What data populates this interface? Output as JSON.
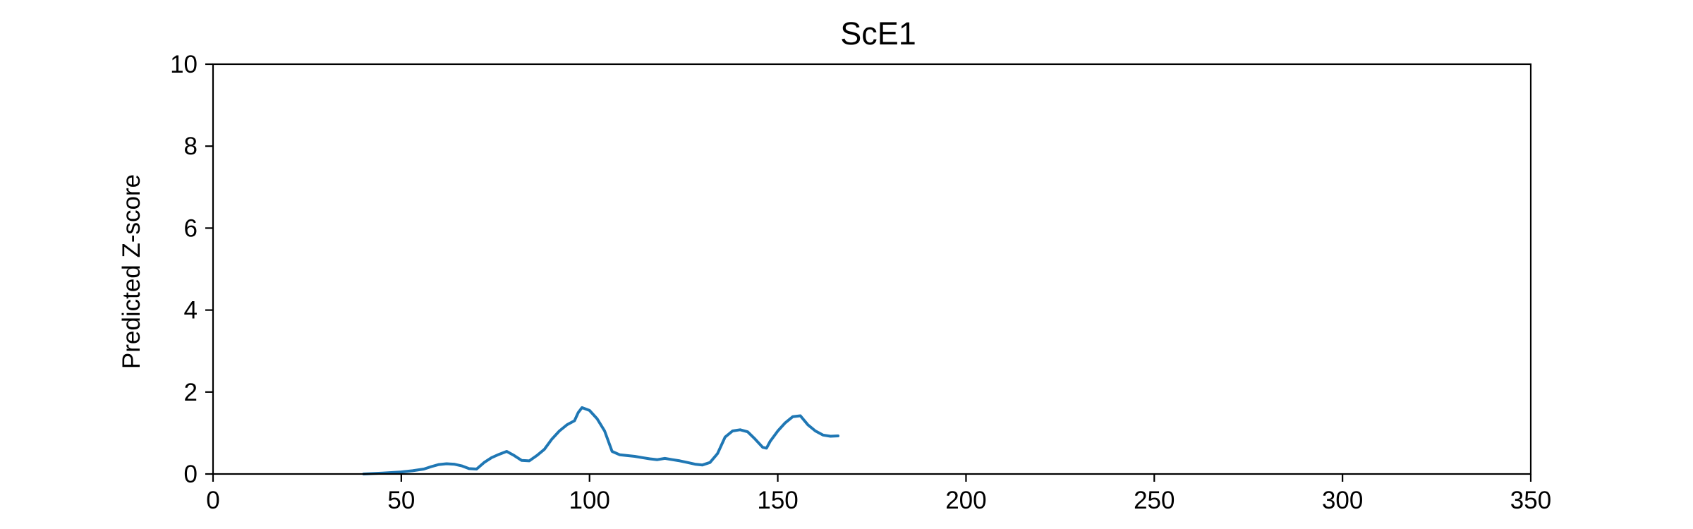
{
  "chart_data": {
    "type": "line",
    "title": "ScE1",
    "xlabel": "",
    "ylabel": "Predicted Z-score",
    "xlim": [
      0,
      350
    ],
    "ylim": [
      0,
      10
    ],
    "xticks": [
      0,
      50,
      100,
      150,
      200,
      250,
      300,
      350
    ],
    "yticks": [
      0,
      2,
      4,
      6,
      8,
      10
    ],
    "grid": false,
    "series": [
      {
        "color": "#1f77b4",
        "x": [
          40,
          45,
          50,
          53,
          56,
          58,
          60,
          62,
          64,
          66,
          68,
          70,
          72,
          74,
          76,
          78,
          80,
          82,
          84,
          86,
          88,
          90,
          92,
          94,
          96,
          97,
          98,
          100,
          102,
          104,
          106,
          108,
          110,
          112,
          114,
          116,
          118,
          120,
          122,
          124,
          126,
          128,
          130,
          132,
          134,
          136,
          138,
          140,
          142,
          144,
          146,
          147,
          148,
          150,
          152,
          154,
          156,
          158,
          160,
          162,
          164,
          166
        ],
        "y": [
          0.0,
          0.02,
          0.05,
          0.08,
          0.12,
          0.18,
          0.23,
          0.25,
          0.24,
          0.2,
          0.13,
          0.12,
          0.28,
          0.4,
          0.48,
          0.55,
          0.45,
          0.33,
          0.32,
          0.45,
          0.6,
          0.85,
          1.05,
          1.2,
          1.3,
          1.5,
          1.62,
          1.55,
          1.35,
          1.05,
          0.55,
          0.47,
          0.45,
          0.43,
          0.4,
          0.37,
          0.35,
          0.38,
          0.35,
          0.32,
          0.28,
          0.24,
          0.22,
          0.28,
          0.5,
          0.9,
          1.05,
          1.08,
          1.03,
          0.85,
          0.65,
          0.63,
          0.8,
          1.05,
          1.25,
          1.4,
          1.42,
          1.2,
          1.05,
          0.95,
          0.92,
          0.93
        ]
      }
    ]
  }
}
